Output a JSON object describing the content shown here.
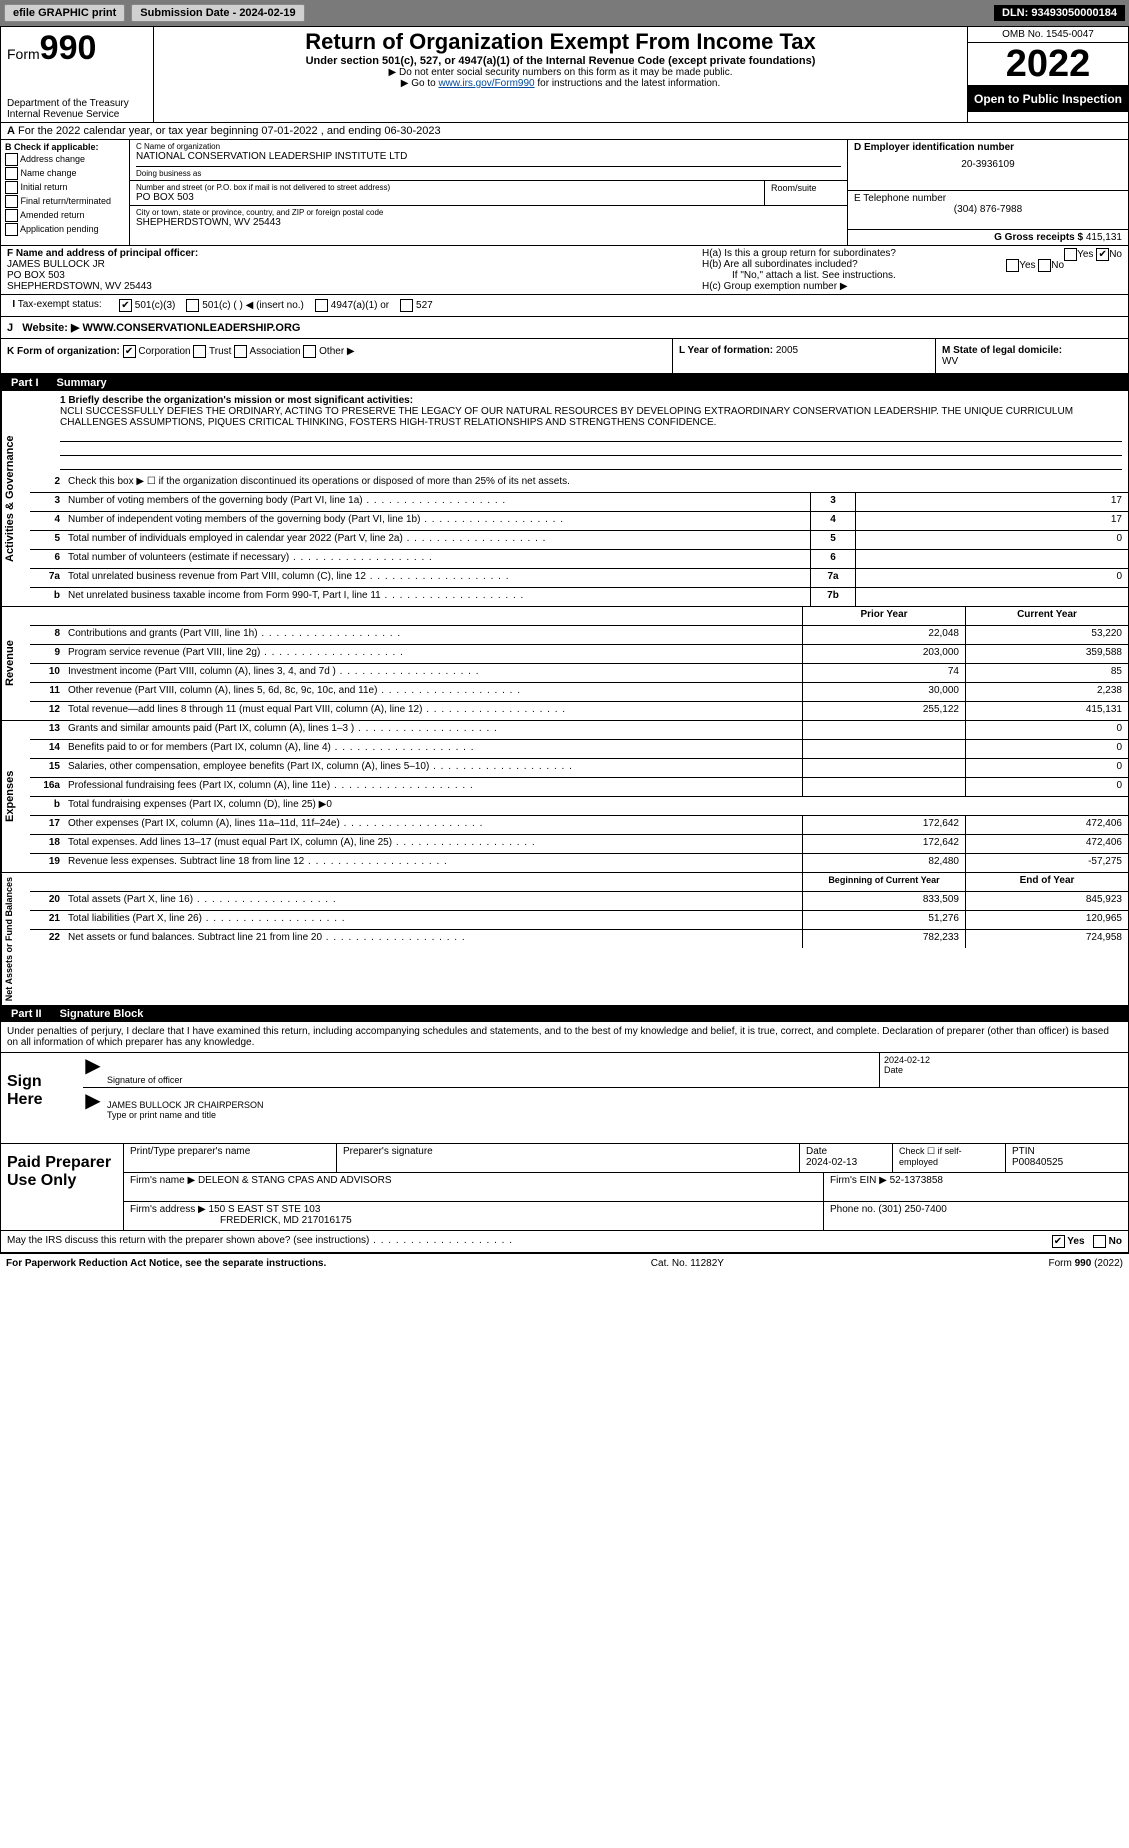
{
  "top_bar": {
    "efile": "efile GRAPHIC print",
    "sub_label": "Submission Date - 2024-02-19",
    "dln": "DLN: 93493050000184"
  },
  "header": {
    "form_prefix": "Form",
    "form_number": "990",
    "dept": "Department of the Treasury",
    "irs": "Internal Revenue Service",
    "title": "Return of Organization Exempt From Income Tax",
    "sub1": "Under section 501(c), 527, or 4947(a)(1) of the Internal Revenue Code (except private foundations)",
    "sub2": "▶ Do not enter social security numbers on this form as it may be made public.",
    "sub3_pre": "▶ Go to ",
    "sub3_link": "www.irs.gov/Form990",
    "sub3_post": " for instructions and the latest information.",
    "omb": "OMB No. 1545-0047",
    "year": "2022",
    "open": "Open to Public Inspection"
  },
  "row_a": "For the 2022 calendar year, or tax year beginning 07-01-2022    , and ending 06-30-2023",
  "box_b": {
    "title": "B Check if applicable:",
    "opts": [
      "Address change",
      "Name change",
      "Initial return",
      "Final return/terminated",
      "Amended return",
      "Application pending"
    ]
  },
  "box_c": {
    "name_label": "C Name of organization",
    "name": "NATIONAL CONSERVATION LEADERSHIP INSTITUTE LTD",
    "dba_label": "Doing business as",
    "street_label": "Number and street (or P.O. box if mail is not delivered to street address)",
    "room_label": "Room/suite",
    "street": "PO BOX 503",
    "city_label": "City or town, state or province, country, and ZIP or foreign postal code",
    "city": "SHEPHERDSTOWN, WV  25443"
  },
  "box_d": {
    "label": "D Employer identification number",
    "value": "20-3936109"
  },
  "box_e": {
    "label": "E Telephone number",
    "value": "(304) 876-7988"
  },
  "box_g": {
    "label": "G Gross receipts $",
    "value": "415,131"
  },
  "box_f": {
    "label": "F  Name and address of principal officer:",
    "name": "JAMES BULLOCK JR",
    "street": "PO BOX 503",
    "city": "SHEPHERDSTOWN, WV  25443"
  },
  "box_h": {
    "a": "H(a)  Is this a group return for subordinates?",
    "b": "H(b)  Are all subordinates included?",
    "b_note": "If \"No,\" attach a list. See instructions.",
    "c": "H(c)  Group exemption number ▶",
    "yes": "Yes",
    "no": "No"
  },
  "exempt": {
    "label": "Tax-exempt status:",
    "o1": "501(c)(3)",
    "o2": "501(c) (   ) ◀ (insert no.)",
    "o3": "4947(a)(1) or",
    "o4": "527"
  },
  "row_j": {
    "label": "J",
    "text": "Website: ▶",
    "value": "WWW.CONSERVATIONLEADERSHIP.ORG"
  },
  "row_k": "K Form of organization:",
  "k_opts": [
    "Corporation",
    "Trust",
    "Association",
    "Other ▶"
  ],
  "row_l": {
    "label": "L Year of formation:",
    "value": "2005"
  },
  "row_m": {
    "label": "M State of legal domicile:",
    "value": "WV"
  },
  "part1": {
    "num": "Part I",
    "title": "Summary"
  },
  "brief": {
    "label": "1  Briefly describe the organization's mission or most significant activities:",
    "text": "NCLI SUCCESSFULLY DEFIES THE ORDINARY, ACTING TO PRESERVE THE LEGACY OF OUR NATURAL RESOURCES BY DEVELOPING EXTRAORDINARY CONSERVATION LEADERSHIP. THE UNIQUE CURRICULUM CHALLENGES ASSUMPTIONS, PIQUES CRITICAL THINKING, FOSTERS HIGH-TRUST RELATIONSHIPS AND STRENGTHENS CONFIDENCE."
  },
  "gov_lines": [
    {
      "n": "2",
      "t": "Check this box ▶ ☐  if the organization discontinued its operations or disposed of more than 25% of its net assets."
    },
    {
      "n": "3",
      "t": "Number of voting members of the governing body (Part VI, line 1a)",
      "box prénom": "3",
      "bn": "3",
      "v": "17"
    },
    {
      "n": "4",
      "t": "Number of independent voting members of the governing body (Part VI, line 1b)",
      "bn": "4",
      "v": "17"
    },
    {
      "n": "5",
      "t": "Total number of individuals employed in calendar year 2022 (Part V, line 2a)",
      "bn": "5",
      "v": "0"
    },
    {
      "n": "6",
      "t": "Total number of volunteers (estimate if necessary)",
      "bn": "6",
      "v": ""
    },
    {
      "n": "7a",
      "t": "Total unrelated business revenue from Part VIII, column (C), line 12",
      "bn": "7a",
      "v": "0"
    },
    {
      "n": "b",
      "t": "Net unrelated business taxable income from Form 990-T, Part I, line 11",
      "bn": "7b",
      "v": ""
    }
  ],
  "col_headers": {
    "prior": "Prior Year",
    "current": "Current Year"
  },
  "revenue": [
    {
      "n": "8",
      "t": "Contributions and grants (Part VIII, line 1h)",
      "c1": "22,048",
      "c2": "53,220"
    },
    {
      "n": "9",
      "t": "Program service revenue (Part VIII, line 2g)",
      "c1": "203,000",
      "c2": "359,588"
    },
    {
      "n": "10",
      "t": "Investment income (Part VIII, column (A), lines 3, 4, and 7d )",
      "c1": "74",
      "c2": "85"
    },
    {
      "n": "11",
      "t": "Other revenue (Part VIII, column (A), lines 5, 6d, 8c, 9c, 10c, and 11e)",
      "c1": "30,000",
      "c2": "2,238"
    },
    {
      "n": "12",
      "t": "Total revenue—add lines 8 through 11 (must equal Part VIII, column (A), line 12)",
      "c1": "255,122",
      "c2": "415,131"
    }
  ],
  "expenses": [
    {
      "n": "13",
      "t": "Grants and similar amounts paid (Part IX, column (A), lines 1–3 )",
      "c1": "",
      "c2": "0"
    },
    {
      "n": "14",
      "t": "Benefits paid to or for members (Part IX, column (A), line 4)",
      "c1": "",
      "c2": "0"
    },
    {
      "n": "15",
      "t": "Salaries, other compensation, employee benefits (Part IX, column (A), lines 5–10)",
      "c1": "",
      "c2": "0"
    },
    {
      "n": "16a",
      "t": "Professional fundraising fees (Part IX, column (A), line 11e)",
      "c1": "",
      "c2": "0"
    },
    {
      "n": "b",
      "t": "Total fundraising expenses (Part IX, column (D), line 25) ▶0",
      "c1": null,
      "c2": null
    },
    {
      "n": "17",
      "t": "Other expenses (Part IX, column (A), lines 11a–11d, 11f–24e)",
      "c1": "172,642",
      "c2": "472,406"
    },
    {
      "n": "18",
      "t": "Total expenses. Add lines 13–17 (must equal Part IX, column (A), line 25)",
      "c1": "172,642",
      "c2": "472,406"
    },
    {
      "n": "19",
      "t": "Revenue less expenses. Subtract line 18 from line 12",
      "c1": "82,480",
      "c2": "-57,275"
    }
  ],
  "net_headers": {
    "c1": "Beginning of Current Year",
    "c2": "End of Year"
  },
  "net": [
    {
      "n": "20",
      "t": "Total assets (Part X, line 16)",
      "c1": "833,509",
      "c2": "845,923"
    },
    {
      "n": "21",
      "t": "Total liabilities (Part X, line 26)",
      "c1": "51,276",
      "c2": "120,965"
    },
    {
      "n": "22",
      "t": "Net assets or fund balances. Subtract line 21 from line 20",
      "c1": "782,233",
      "c2": "724,958"
    }
  ],
  "part2": {
    "num": "Part II",
    "title": "Signature Block"
  },
  "sig_intro": "Under penalties of perjury, I declare that I have examined this return, including accompanying schedules and statements, and to the best of my knowledge and belief, it is true, correct, and complete. Declaration of preparer (other than officer) is based on all information of which preparer has any knowledge.",
  "sign": {
    "here": "Sign Here",
    "sig_label": "Signature of officer",
    "date_label": "Date",
    "date": "2024-02-12",
    "name": "JAMES BULLOCK JR CHAIRPERSON",
    "name_label": "Type or print name and title"
  },
  "paid": {
    "label": "Paid Preparer Use Only",
    "h1": "Print/Type preparer's name",
    "h2": "Preparer's signature",
    "h3": "Date",
    "h3v": "2024-02-13",
    "h4": "Check ☐ if self-employed",
    "h5": "PTIN",
    "ptin": "P00840525",
    "firm_name_l": "Firm's name    ▶",
    "firm_name": "DELEON & STANG CPAS AND ADVISORS",
    "firm_ein_l": "Firm's EIN ▶",
    "firm_ein": "52-1373858",
    "firm_addr_l": "Firm's address ▶",
    "firm_addr1": "150 S EAST ST STE 103",
    "firm_addr2": "FREDERICK, MD  217016175",
    "phone_l": "Phone no.",
    "phone": "(301) 250-7400"
  },
  "discuss": "May the IRS discuss this return with the preparer shown above? (see instructions)",
  "footer": {
    "left": "For Paperwork Reduction Act Notice, see the separate instructions.",
    "mid": "Cat. No. 11282Y",
    "right": "Form 990 (2022)"
  },
  "tabs": {
    "gov": "Activities & Governance",
    "rev": "Revenue",
    "exp": "Expenses",
    "net": "Net Assets or Fund Balances"
  }
}
